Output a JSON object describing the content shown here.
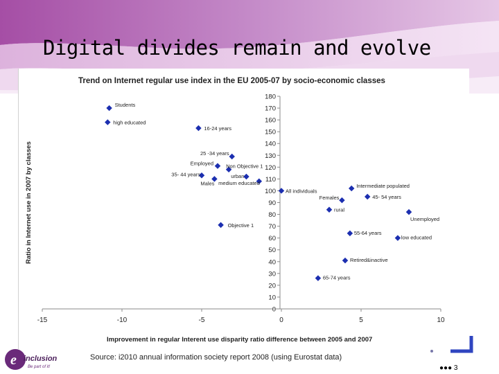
{
  "slide": {
    "title": "Digital divides remain and evolve",
    "source": "Source: i2010 annual information society report 2008 (using Eurostat data)",
    "page": "3",
    "logo_text": "inclusion",
    "logo_tagline": "Be part of it!"
  },
  "colors": {
    "marker": "#1c2fb0",
    "banner": "#c893c8",
    "accent": "#2f45c0"
  },
  "chart_data": {
    "type": "scatter",
    "title": "Trend on Internet regular use index in the EU 2005-07 by socio-economic classes",
    "xlabel": "Improvement in regular Interent use disparity ratio difference between 2005 and 2007",
    "ylabel": "Ratio in Internet use in 2007 by classes",
    "xlim": [
      -15,
      10
    ],
    "ylim": [
      0,
      180
    ],
    "xticks": [
      -15,
      -10,
      -5,
      0,
      5,
      10
    ],
    "yticks": [
      0,
      10,
      20,
      30,
      40,
      50,
      60,
      70,
      80,
      90,
      100,
      110,
      120,
      130,
      140,
      150,
      160,
      170,
      180
    ],
    "grid": false,
    "points": [
      {
        "label": "Students",
        "x": -10.8,
        "y": 170
      },
      {
        "label": "high educated",
        "x": -10.9,
        "y": 158
      },
      {
        "label": "16-24 years",
        "x": -5.2,
        "y": 153
      },
      {
        "label": "25 -34 years",
        "x": -3.1,
        "y": 129
      },
      {
        "label": "Employed",
        "x": -4.0,
        "y": 121
      },
      {
        "label": "Non Objective 1",
        "x": -3.3,
        "y": 118
      },
      {
        "label": "35- 44 years",
        "x": -5.0,
        "y": 113
      },
      {
        "label": "urban",
        "x": -2.2,
        "y": 112
      },
      {
        "label": "Males",
        "x": -4.2,
        "y": 110
      },
      {
        "label": "medium educated",
        "x": -1.4,
        "y": 108
      },
      {
        "label": "All individuals",
        "x": 0.0,
        "y": 100
      },
      {
        "label": "Intermediate populated",
        "x": 4.4,
        "y": 102
      },
      {
        "label": "Females",
        "x": 3.8,
        "y": 92
      },
      {
        "label": "45- 54 years",
        "x": 5.4,
        "y": 95
      },
      {
        "label": "rural",
        "x": 3.0,
        "y": 84
      },
      {
        "label": "Unemployed",
        "x": 8.0,
        "y": 82
      },
      {
        "label": "Objective 1",
        "x": -3.8,
        "y": 71
      },
      {
        "label": "55-64 years",
        "x": 4.3,
        "y": 64
      },
      {
        "label": "low educated",
        "x": 7.3,
        "y": 60
      },
      {
        "label": "Retired&inactive",
        "x": 4.0,
        "y": 41
      },
      {
        "label": "65-74 years",
        "x": 2.3,
        "y": 26
      }
    ]
  }
}
